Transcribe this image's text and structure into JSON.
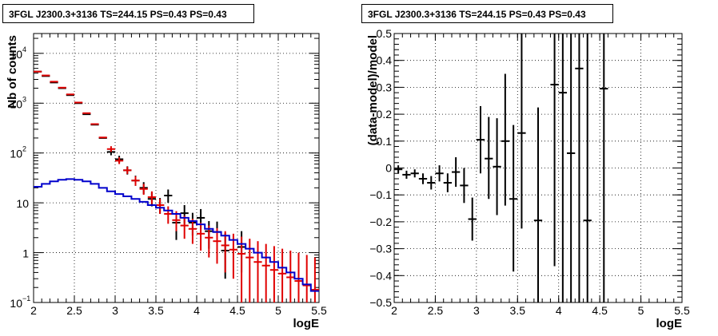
{
  "chart_data": [
    {
      "type": "scatter",
      "title": "3FGL J2300.3+3136 TS=244.15 PS=0.43 PS=0.43",
      "xlabel": "logE",
      "ylabel": "Nb of counts",
      "xlim": [
        2,
        5.5
      ],
      "ylim": [
        0.1,
        25000
      ],
      "yscale": "log",
      "grid": true,
      "xticks": [
        "2",
        "2.5",
        "3",
        "3.5",
        "4",
        "4.5",
        "5",
        "5.5"
      ],
      "yticks": [
        {
          "value": 0.1,
          "label": "10",
          "exp": "−1"
        },
        {
          "value": 1,
          "label": "1",
          "exp": ""
        },
        {
          "value": 10,
          "label": "10",
          "exp": ""
        },
        {
          "value": 100,
          "label": "10",
          "exp": "2"
        },
        {
          "value": 1000,
          "label": "10",
          "exp": "3"
        },
        {
          "value": 10000,
          "label": "10",
          "exp": "4"
        }
      ],
      "series": [
        {
          "color": "#000000",
          "style": "errorbar",
          "points": [
            {
              "x": 2.05,
              "y": 4300
            },
            {
              "x": 2.15,
              "y": 3500
            },
            {
              "x": 2.25,
              "y": 2600
            },
            {
              "x": 2.35,
              "y": 2000
            },
            {
              "x": 2.45,
              "y": 1450
            },
            {
              "x": 2.55,
              "y": 1000
            },
            {
              "x": 2.65,
              "y": 600
            },
            {
              "x": 2.75,
              "y": 370
            },
            {
              "x": 2.85,
              "y": 200
            },
            {
              "x": 2.95,
              "y": 105,
              "ylo": 90,
              "yhi": 122
            },
            {
              "x": 3.05,
              "y": 75,
              "ylo": 64,
              "yhi": 88
            },
            {
              "x": 3.15,
              "y": 45,
              "ylo": 37,
              "yhi": 54
            },
            {
              "x": 3.25,
              "y": 28,
              "ylo": 22,
              "yhi": 35
            },
            {
              "x": 3.35,
              "y": 20,
              "ylo": 15,
              "yhi": 26
            },
            {
              "x": 3.45,
              "y": 12,
              "ylo": 8.5,
              "yhi": 16
            },
            {
              "x": 3.55,
              "y": 9,
              "ylo": 6,
              "yhi": 12.5
            },
            {
              "x": 3.65,
              "y": 14,
              "ylo": 10,
              "yhi": 18.5
            },
            {
              "x": 3.75,
              "y": 4,
              "ylo": 1.8,
              "yhi": 6.5
            },
            {
              "x": 3.85,
              "y": 6.2,
              "ylo": 3.8,
              "yhi": 9
            },
            {
              "x": 3.95,
              "y": 4,
              "ylo": 2.2,
              "yhi": 6.3
            },
            {
              "x": 4.05,
              "y": 5,
              "ylo": 3,
              "yhi": 7.5
            },
            {
              "x": 4.15,
              "y": 2.7,
              "ylo": 1.2,
              "yhi": 4.3
            },
            {
              "x": 4.25,
              "y": 2.6,
              "ylo": 1.2,
              "yhi": 4.2
            },
            {
              "x": 4.35,
              "y": 1.1,
              "ylo": 0.3,
              "yhi": 2.5
            },
            {
              "x": 4.55,
              "y": 1.3,
              "ylo": 0.4,
              "yhi": 2.7
            }
          ]
        },
        {
          "color": "#e00000",
          "style": "errorbar",
          "points": [
            {
              "x": 2.05,
              "y": 4300
            },
            {
              "x": 2.15,
              "y": 3600
            },
            {
              "x": 2.25,
              "y": 2700
            },
            {
              "x": 2.35,
              "y": 2050
            },
            {
              "x": 2.45,
              "y": 1500
            },
            {
              "x": 2.55,
              "y": 1030
            },
            {
              "x": 2.65,
              "y": 630
            },
            {
              "x": 2.75,
              "y": 380
            },
            {
              "x": 2.85,
              "y": 205
            },
            {
              "x": 2.95,
              "y": 120,
              "ylo": 105,
              "yhi": 137
            },
            {
              "x": 3.05,
              "y": 70,
              "ylo": 60,
              "yhi": 82
            },
            {
              "x": 3.15,
              "y": 45,
              "ylo": 38,
              "yhi": 53
            },
            {
              "x": 3.25,
              "y": 28,
              "ylo": 22,
              "yhi": 34
            },
            {
              "x": 3.35,
              "y": 19,
              "ylo": 14.5,
              "yhi": 24
            },
            {
              "x": 3.45,
              "y": 13,
              "ylo": 9.5,
              "yhi": 17
            },
            {
              "x": 3.55,
              "y": 9,
              "ylo": 6,
              "yhi": 12
            },
            {
              "x": 3.65,
              "y": 6,
              "ylo": 3.8,
              "yhi": 8.5
            },
            {
              "x": 3.75,
              "y": 4.5,
              "ylo": 2.7,
              "yhi": 6.8
            },
            {
              "x": 3.85,
              "y": 3.5,
              "ylo": 1.9,
              "yhi": 5.5
            },
            {
              "x": 3.95,
              "y": 3,
              "ylo": 1.5,
              "yhi": 4.8
            },
            {
              "x": 4.05,
              "y": 2.4,
              "ylo": 1.1,
              "yhi": 4
            },
            {
              "x": 4.15,
              "y": 2,
              "ylo": 0.8,
              "yhi": 3.5
            },
            {
              "x": 4.25,
              "y": 1.7,
              "ylo": 0.6,
              "yhi": 3.1
            },
            {
              "x": 4.35,
              "y": 1.4,
              "ylo": 0.4,
              "yhi": 2.7
            },
            {
              "x": 4.45,
              "y": 1.15,
              "ylo": 0.3,
              "yhi": 2.4
            },
            {
              "x": 4.55,
              "y": 0.95,
              "ylo": 0.1,
              "yhi": 2.1
            },
            {
              "x": 4.65,
              "y": 0.8,
              "ylo": 0.1,
              "yhi": 1.9
            },
            {
              "x": 4.75,
              "y": 0.65,
              "ylo": 0.1,
              "yhi": 1.7
            },
            {
              "x": 4.85,
              "y": 0.55,
              "ylo": 0.1,
              "yhi": 1.5
            },
            {
              "x": 4.95,
              "y": 0.45,
              "ylo": 0.1,
              "yhi": 1.35
            },
            {
              "x": 5.05,
              "y": 0.38,
              "ylo": 0.1,
              "yhi": 1.2
            },
            {
              "x": 5.15,
              "y": 0.32,
              "ylo": 0.1,
              "yhi": 1.1
            },
            {
              "x": 5.25,
              "y": 0.27,
              "ylo": 0.1,
              "yhi": 1.0
            },
            {
              "x": 5.35,
              "y": 0.22,
              "ylo": 0.1,
              "yhi": 0.9
            },
            {
              "x": 5.45,
              "y": 0.18,
              "ylo": 0.1,
              "yhi": 0.8
            }
          ]
        },
        {
          "color": "#0000cc",
          "style": "step",
          "bins": [
            2.0,
            2.1,
            2.2,
            2.3,
            2.4,
            2.5,
            2.6,
            2.7,
            2.8,
            2.9,
            3.0,
            3.1,
            3.2,
            3.3,
            3.4,
            3.5,
            3.6,
            3.7,
            3.8,
            3.9,
            4.0,
            4.1,
            4.2,
            4.3,
            4.4,
            4.5,
            4.6,
            4.7,
            4.8,
            4.9,
            5.0,
            5.1,
            5.2,
            5.3,
            5.4,
            5.5
          ],
          "values": [
            21,
            24,
            27,
            29,
            30,
            29,
            27,
            24,
            20,
            17,
            15,
            13.5,
            12,
            10.5,
            9,
            8,
            7,
            6,
            5,
            4.3,
            3.7,
            3.0,
            2.6,
            2.2,
            1.8,
            1.5,
            1.2,
            1.0,
            0.8,
            0.65,
            0.5,
            0.4,
            0.3,
            0.23,
            0.17
          ]
        }
      ]
    },
    {
      "type": "scatter",
      "title": "3FGL J2300.3+3136 TS=244.15 PS=0.43 PS=0.43",
      "xlabel": "logE",
      "ylabel": "(data-model)/model",
      "xlim": [
        2,
        5.5
      ],
      "ylim": [
        -0.5,
        0.5
      ],
      "grid": true,
      "xticks": [
        "2",
        "2.5",
        "3",
        "3.5",
        "4",
        "4.5",
        "5",
        "5.5"
      ],
      "yticks": [
        "−0.5",
        "−0.4",
        "−0.3",
        "−0.2",
        "−0.1",
        "0",
        "0.1",
        "0.2",
        "0.3",
        "0.4",
        "0.5"
      ],
      "series": [
        {
          "color": "#000000",
          "style": "errorbar",
          "points": [
            {
              "x": 2.05,
              "y": -0.005,
              "ylo": -0.02,
              "yhi": 0.01
            },
            {
              "x": 2.15,
              "y": -0.025,
              "ylo": -0.04,
              "yhi": -0.01
            },
            {
              "x": 2.25,
              "y": -0.02,
              "ylo": -0.035,
              "yhi": -0.005
            },
            {
              "x": 2.35,
              "y": -0.04,
              "ylo": -0.06,
              "yhi": -0.02
            },
            {
              "x": 2.45,
              "y": -0.055,
              "ylo": -0.08,
              "yhi": -0.03
            },
            {
              "x": 2.55,
              "y": -0.02,
              "ylo": -0.05,
              "yhi": 0.01
            },
            {
              "x": 2.65,
              "y": -0.055,
              "ylo": -0.09,
              "yhi": -0.02
            },
            {
              "x": 2.75,
              "y": -0.015,
              "ylo": -0.07,
              "yhi": 0.04
            },
            {
              "x": 2.85,
              "y": -0.065,
              "ylo": -0.13,
              "yhi": 0
            },
            {
              "x": 2.95,
              "y": -0.19,
              "ylo": -0.27,
              "yhi": -0.11
            },
            {
              "x": 3.05,
              "y": 0.105,
              "ylo": -0.02,
              "yhi": 0.23
            },
            {
              "x": 3.15,
              "y": 0.035,
              "ylo": -0.115,
              "yhi": 0.19
            },
            {
              "x": 3.25,
              "y": 0.005,
              "ylo": -0.175,
              "yhi": 0.185
            },
            {
              "x": 3.35,
              "y": 0.1,
              "ylo": -0.14,
              "yhi": 0.35
            },
            {
              "x": 3.45,
              "y": -0.115,
              "ylo": -0.385,
              "yhi": 0.16
            },
            {
              "x": 3.55,
              "y": 0.13,
              "ylo": -0.225,
              "yhi": 0.5
            },
            {
              "x": 3.75,
              "y": -0.195,
              "ylo": -0.5,
              "yhi": 0.225
            },
            {
              "x": 3.95,
              "y": 0.31,
              "ylo": -0.365,
              "yhi": 0.5
            },
            {
              "x": 4.05,
              "y": 0.28,
              "ylo": -0.5,
              "yhi": 0.5
            },
            {
              "x": 4.15,
              "y": 0.055,
              "ylo": -0.5,
              "yhi": 0.5
            },
            {
              "x": 4.25,
              "y": 0.37,
              "ylo": -0.5,
              "yhi": 0.5
            },
            {
              "x": 4.35,
              "y": -0.195,
              "ylo": -0.5,
              "yhi": 0.5
            },
            {
              "x": 4.55,
              "y": 0.295,
              "ylo": -0.5,
              "yhi": 0.5
            }
          ]
        }
      ]
    }
  ]
}
